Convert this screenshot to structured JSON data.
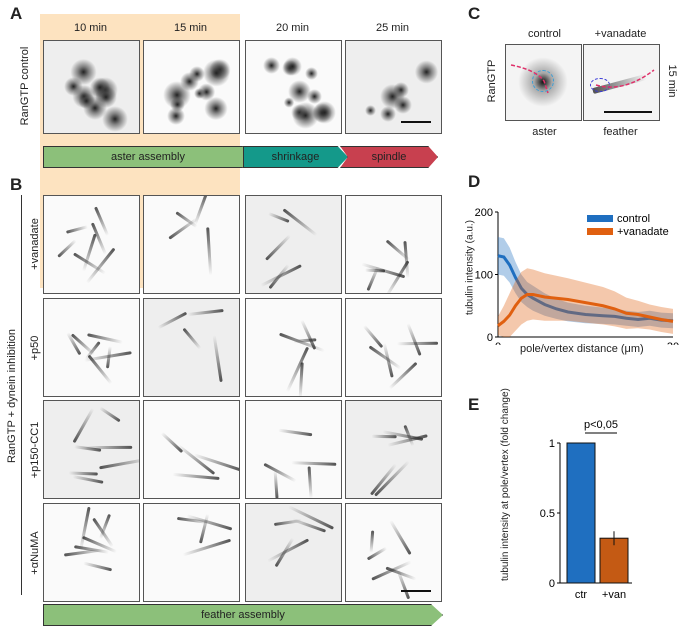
{
  "panels": {
    "a": "A",
    "b": "B",
    "c": "C",
    "d": "D",
    "e": "E"
  },
  "panel_a": {
    "time_headers": [
      "10 min",
      "15 min",
      "20 min",
      "25 min"
    ],
    "row_label": "RanGTP control"
  },
  "phases": [
    {
      "label": "aster assembly",
      "color": "#8cc07a"
    },
    {
      "label": "shrinkage",
      "color": "#14998a"
    },
    {
      "label": "spindle",
      "color": "#c8404f"
    }
  ],
  "panel_b": {
    "group_label": "RanGTP + dynein inhibition",
    "rows": [
      "+vanadate",
      "+p50",
      "+p150-CC1",
      "+αNuMA"
    ],
    "bottom_phase": "feather assembly"
  },
  "panel_c": {
    "columns": [
      "control",
      "+vanadate"
    ],
    "row_label": "RanGTP",
    "time": "15 min",
    "captions": [
      "aster",
      "feather"
    ]
  },
  "chart_data": [
    {
      "type": "line",
      "title": "",
      "xlabel": "pole/vertex distance (μm)",
      "ylabel": "tubulin intensity (a.u.)",
      "xlim": [
        0,
        30
      ],
      "ylim": [
        0,
        200
      ],
      "xticks": [
        "0",
        "30"
      ],
      "yticks": [
        "0",
        "100",
        "200"
      ],
      "legend": "top-right",
      "x": [
        0,
        1,
        2,
        3,
        4,
        5,
        6,
        8,
        10,
        12,
        15,
        18,
        20,
        22,
        24,
        26,
        28,
        30
      ],
      "series": [
        {
          "name": "control",
          "color": "#1f6fc0",
          "values": [
            130,
            128,
            115,
            95,
            78,
            68,
            62,
            52,
            45,
            40,
            36,
            34,
            33,
            30,
            28,
            30,
            27,
            26
          ],
          "band": [
            30,
            30,
            28,
            25,
            22,
            20,
            20,
            18,
            16,
            15,
            14,
            13,
            13,
            12,
            12,
            12,
            12,
            12
          ]
        },
        {
          "name": "+vanadate",
          "color": "#e06010",
          "values": [
            18,
            25,
            35,
            50,
            62,
            68,
            68,
            64,
            62,
            60,
            55,
            50,
            45,
            38,
            36,
            32,
            28,
            25
          ],
          "band": [
            15,
            25,
            35,
            40,
            42,
            42,
            40,
            38,
            36,
            34,
            32,
            30,
            28,
            25,
            22,
            20,
            20,
            20
          ]
        }
      ]
    },
    {
      "type": "bar",
      "title": "",
      "ylabel": "tubulin intensity  at pole/vertex (fold change)",
      "categories": [
        "ctr",
        "+van"
      ],
      "values": [
        1.0,
        0.32
      ],
      "errors": [
        0,
        0.05
      ],
      "colors": [
        "#1f6fc0",
        "#c45a14"
      ],
      "ylim": [
        0,
        1
      ],
      "yticks": [
        "0",
        "0.5",
        "1"
      ],
      "annotation": "p<0,05"
    }
  ]
}
